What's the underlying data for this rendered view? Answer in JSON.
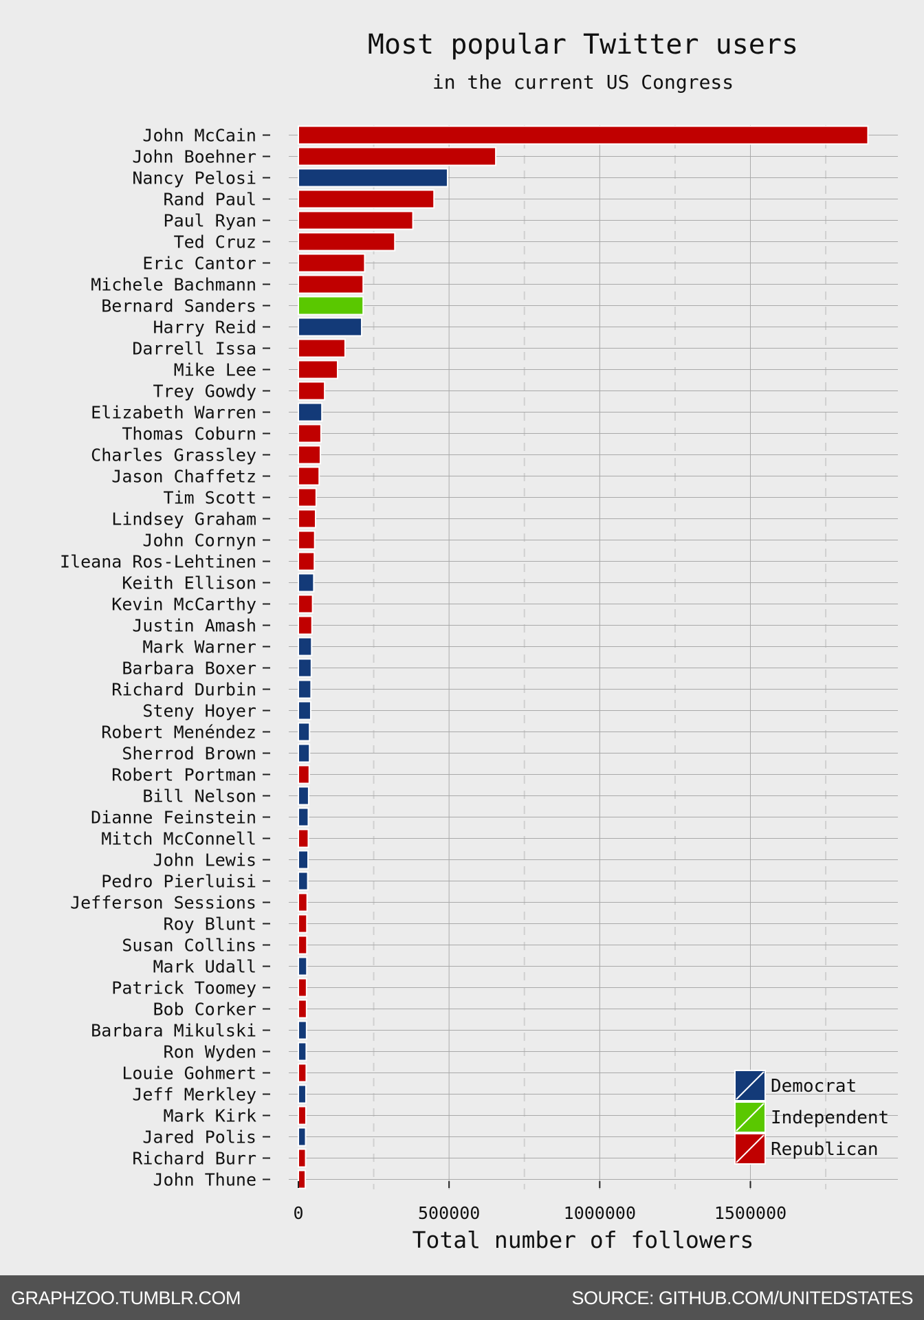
{
  "footer": {
    "left": "GRAPHZOO.TUMBLR.COM",
    "right": "SOURCE: GITHUB.COM/UNITEDSTATES"
  },
  "chart_data": {
    "type": "bar",
    "orientation": "horizontal",
    "title": "Most popular Twitter users",
    "subtitle": "in the current US Congress",
    "xlabel": "Total number of followers",
    "ylabel": "",
    "xlim": [
      0,
      2000000
    ],
    "xticks": [
      0,
      500000,
      1000000,
      1500000
    ],
    "xtick_labels": [
      "0",
      "500000",
      "1000000",
      "1500000"
    ],
    "grid": true,
    "legend_position": "bottom-right",
    "colors": {
      "Democrat": "#133a78",
      "Independent": "#5ac800",
      "Republican": "#c00000",
      "background": "#ececec",
      "footer": "#525252"
    },
    "legend": [
      "Democrat",
      "Independent",
      "Republican"
    ],
    "bars": [
      {
        "name": "John McCain",
        "party": "Republican",
        "value": 1890000
      },
      {
        "name": "John Boehner",
        "party": "Republican",
        "value": 655000
      },
      {
        "name": "Nancy Pelosi",
        "party": "Democrat",
        "value": 495000
      },
      {
        "name": "Rand Paul",
        "party": "Republican",
        "value": 450000
      },
      {
        "name": "Paul Ryan",
        "party": "Republican",
        "value": 380000
      },
      {
        "name": "Ted Cruz",
        "party": "Republican",
        "value": 320000
      },
      {
        "name": "Eric Cantor",
        "party": "Republican",
        "value": 220000
      },
      {
        "name": "Michele Bachmann",
        "party": "Republican",
        "value": 215000
      },
      {
        "name": "Bernard Sanders",
        "party": "Independent",
        "value": 215000
      },
      {
        "name": "Harry Reid",
        "party": "Democrat",
        "value": 210000
      },
      {
        "name": "Darrell Issa",
        "party": "Republican",
        "value": 155000
      },
      {
        "name": "Mike Lee",
        "party": "Republican",
        "value": 130000
      },
      {
        "name": "Trey Gowdy",
        "party": "Republican",
        "value": 87000
      },
      {
        "name": "Elizabeth Warren",
        "party": "Democrat",
        "value": 78000
      },
      {
        "name": "Thomas Coburn",
        "party": "Republican",
        "value": 75000
      },
      {
        "name": "Charles Grassley",
        "party": "Republican",
        "value": 73000
      },
      {
        "name": "Jason Chaffetz",
        "party": "Republican",
        "value": 69000
      },
      {
        "name": "Tim Scott",
        "party": "Republican",
        "value": 59000
      },
      {
        "name": "Lindsey Graham",
        "party": "Republican",
        "value": 57000
      },
      {
        "name": "John Cornyn",
        "party": "Republican",
        "value": 54000
      },
      {
        "name": "Ileana Ros-Lehtinen",
        "party": "Republican",
        "value": 53000
      },
      {
        "name": "Keith Ellison",
        "party": "Democrat",
        "value": 51000
      },
      {
        "name": "Kevin McCarthy",
        "party": "Republican",
        "value": 47000
      },
      {
        "name": "Justin Amash",
        "party": "Republican",
        "value": 45000
      },
      {
        "name": "Mark Warner",
        "party": "Democrat",
        "value": 44000
      },
      {
        "name": "Barbara Boxer",
        "party": "Democrat",
        "value": 43000
      },
      {
        "name": "Richard Durbin",
        "party": "Democrat",
        "value": 42000
      },
      {
        "name": "Steny Hoyer",
        "party": "Democrat",
        "value": 41000
      },
      {
        "name": "Robert Menéndez",
        "party": "Democrat",
        "value": 37000
      },
      {
        "name": "Sherrod Brown",
        "party": "Democrat",
        "value": 37000
      },
      {
        "name": "Robert Portman",
        "party": "Republican",
        "value": 36000
      },
      {
        "name": "Bill Nelson",
        "party": "Democrat",
        "value": 34000
      },
      {
        "name": "Dianne Feinstein",
        "party": "Democrat",
        "value": 33000
      },
      {
        "name": "Mitch McConnell",
        "party": "Republican",
        "value": 33000
      },
      {
        "name": "John Lewis",
        "party": "Democrat",
        "value": 32000
      },
      {
        "name": "Pedro Pierluisi",
        "party": "Democrat",
        "value": 31000
      },
      {
        "name": "Jefferson Sessions",
        "party": "Republican",
        "value": 29000
      },
      {
        "name": "Roy Blunt",
        "party": "Republican",
        "value": 28000
      },
      {
        "name": "Susan Collins",
        "party": "Republican",
        "value": 28000
      },
      {
        "name": "Mark Udall",
        "party": "Democrat",
        "value": 28000
      },
      {
        "name": "Patrick Toomey",
        "party": "Republican",
        "value": 27000
      },
      {
        "name": "Bob Corker",
        "party": "Republican",
        "value": 27000
      },
      {
        "name": "Barbara Mikulski",
        "party": "Democrat",
        "value": 27000
      },
      {
        "name": "Ron Wyden",
        "party": "Democrat",
        "value": 26000
      },
      {
        "name": "Louie Gohmert",
        "party": "Republican",
        "value": 26000
      },
      {
        "name": "Jeff Merkley",
        "party": "Democrat",
        "value": 25000
      },
      {
        "name": "Mark Kirk",
        "party": "Republican",
        "value": 25000
      },
      {
        "name": "Jared Polis",
        "party": "Democrat",
        "value": 24000
      },
      {
        "name": "Richard Burr",
        "party": "Republican",
        "value": 24000
      },
      {
        "name": "John Thune",
        "party": "Republican",
        "value": 23000
      }
    ]
  }
}
